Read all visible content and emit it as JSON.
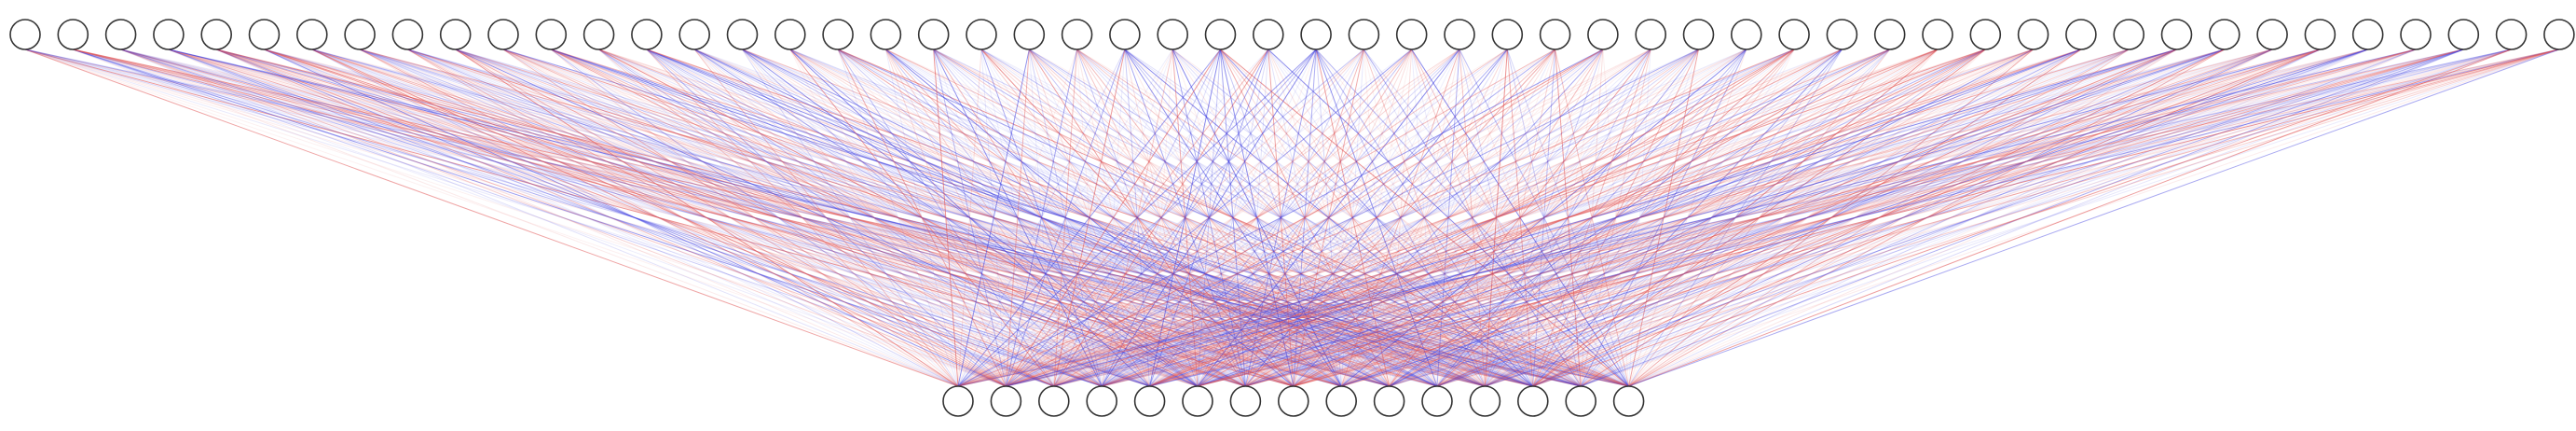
{
  "diagram": {
    "type": "fully-connected-layer",
    "layers": [
      {
        "name": "input-layer",
        "node_count": 54
      },
      {
        "name": "output-layer",
        "node_count": 15
      }
    ],
    "colors": {
      "node_fill": "#ffffff",
      "node_stroke": "#333333",
      "positive_weight": "#e05050",
      "negative_weight": "#4040e0",
      "background": "#ffffff"
    },
    "weight_color_legend": {
      "positive": "red",
      "negative": "blue",
      "opacity_encodes_magnitude": true
    },
    "labels": []
  }
}
